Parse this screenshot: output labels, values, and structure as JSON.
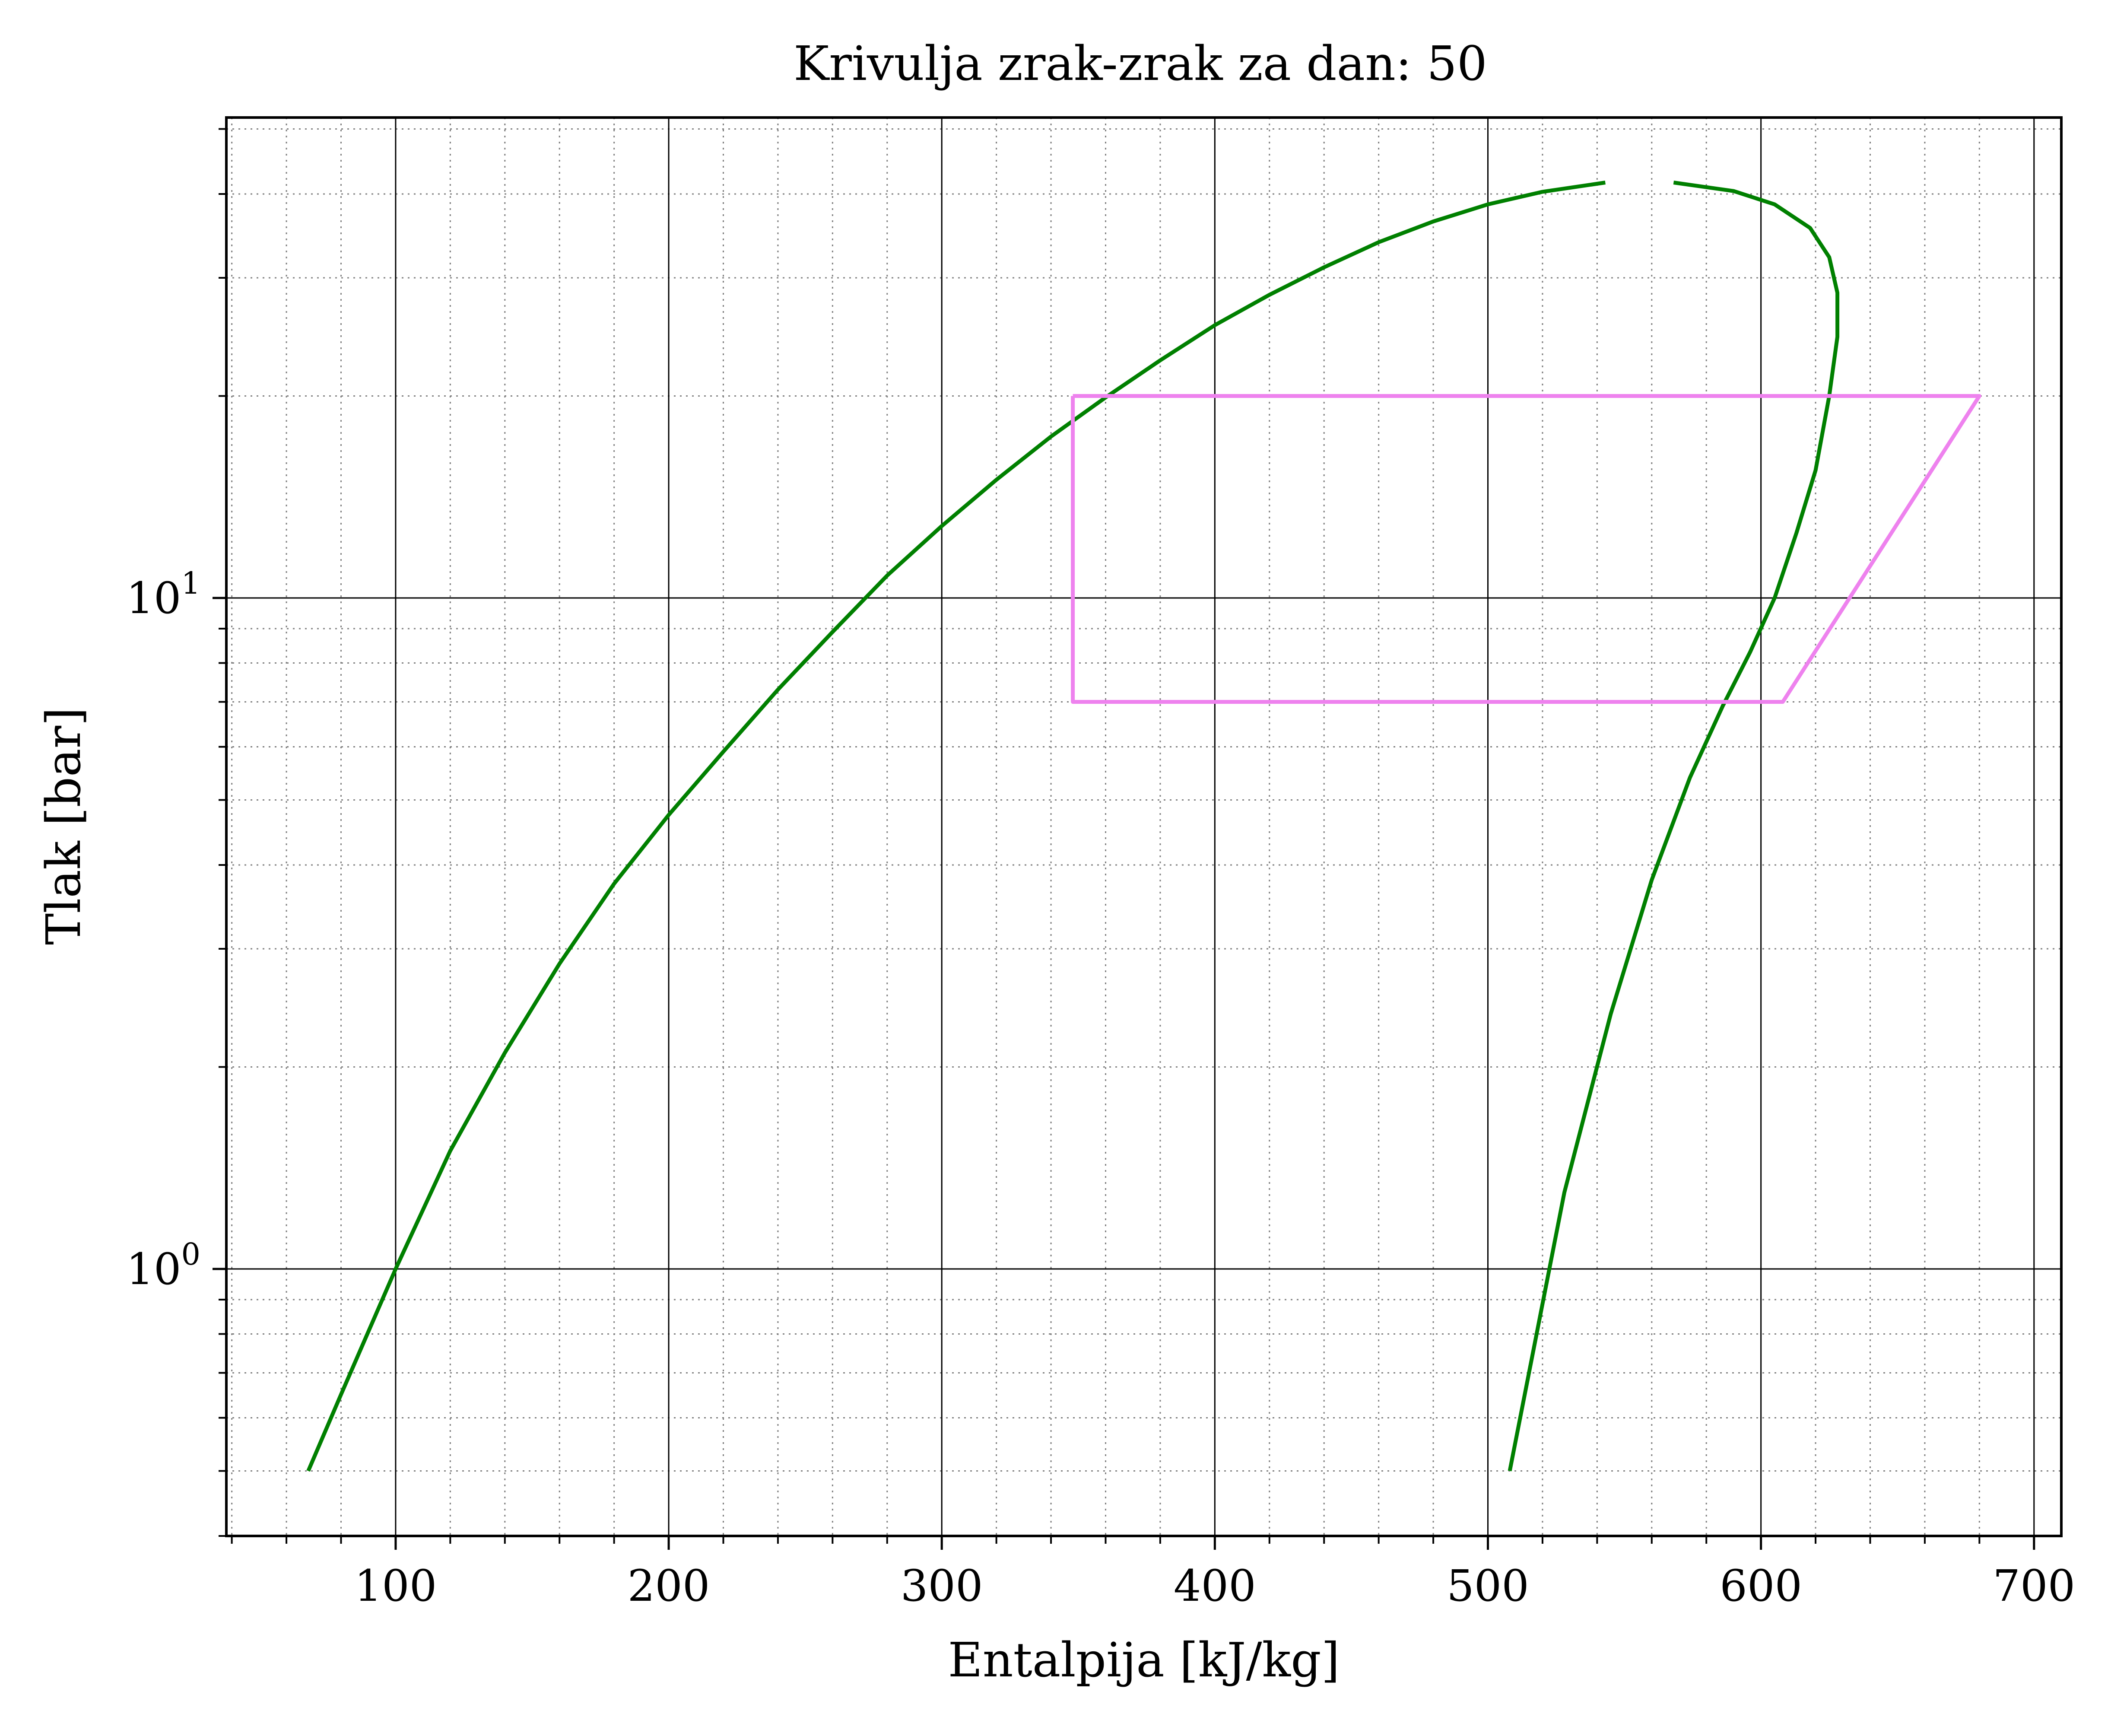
{
  "chart_data": {
    "type": "line",
    "title": "Krivulja zrak-zrak za dan: 50",
    "xlabel": "Entalpija [kJ/kg]",
    "ylabel": "Tlak [bar]",
    "xscale": "linear",
    "yscale": "log",
    "xlim": [
      38,
      710
    ],
    "ylim": [
      0.4,
      52
    ],
    "grid": {
      "major": true,
      "minor": true
    },
    "x_ticks": [
      100,
      200,
      300,
      400,
      500,
      600,
      700
    ],
    "x_tick_labels": [
      "100",
      "200",
      "300",
      "400",
      "500",
      "600",
      "700"
    ],
    "y_ticks": [
      1,
      10
    ],
    "y_tick_labels": [
      {
        "base": "10",
        "exp": "0"
      },
      {
        "base": "10",
        "exp": "1"
      }
    ],
    "series": [
      {
        "color": "#008000",
        "x": [
          68,
          80,
          100,
          120,
          140,
          160,
          180,
          200,
          220,
          240,
          260,
          280,
          300,
          320,
          340,
          360,
          380,
          400,
          420,
          440,
          460,
          480,
          500,
          520,
          543
        ],
        "y": [
          0.5,
          0.65,
          1.0,
          1.5,
          2.1,
          2.85,
          3.75,
          4.75,
          5.9,
          7.3,
          8.9,
          10.8,
          12.8,
          15.0,
          17.4,
          19.9,
          22.6,
          25.5,
          28.3,
          31.1,
          33.9,
          36.4,
          38.6,
          40.3,
          41.6
        ]
      },
      {
        "color": "#008000",
        "x": [
          568,
          590,
          605,
          618,
          625,
          628,
          628,
          625,
          620,
          613,
          605,
          596,
          586,
          574,
          560,
          545,
          528,
          508
        ],
        "y": [
          41.6,
          40.4,
          38.6,
          35.6,
          32.2,
          28.5,
          24.5,
          20.0,
          15.5,
          12.5,
          10.0,
          8.3,
          6.9,
          5.4,
          3.8,
          2.4,
          1.3,
          0.5
        ]
      },
      {
        "color": "#ee82ee",
        "x": [
          348,
          680,
          608,
          348,
          348
        ],
        "y": [
          20.0,
          20.0,
          7.0,
          7.0,
          20.0
        ]
      }
    ]
  }
}
